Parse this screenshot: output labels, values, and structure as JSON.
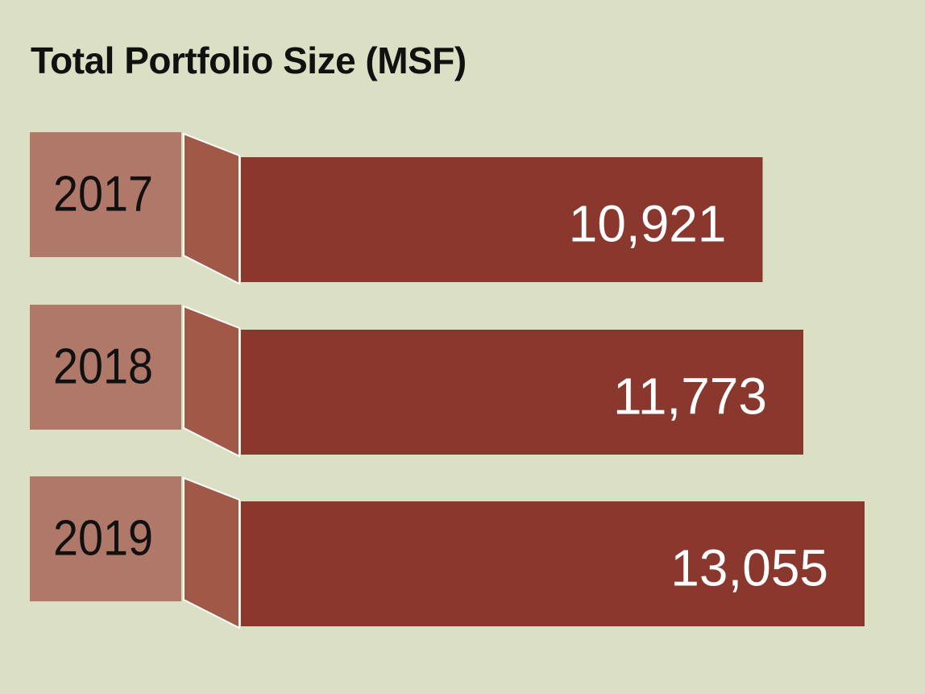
{
  "chart_data": {
    "type": "bar",
    "orientation": "horizontal",
    "title": "Total Portfolio Size (MSF)",
    "categories": [
      "2017",
      "2018",
      "2019"
    ],
    "values": [
      10921,
      11773,
      13055
    ],
    "value_labels": [
      "10,921",
      "11,773",
      "13,055"
    ],
    "xlabel": "",
    "ylabel": "",
    "grid": false,
    "legend": "none"
  },
  "colors": {
    "background": "#dbdfc3",
    "label_box": "#b07868",
    "connector": "#a05847",
    "bar": "#8a372d",
    "value_text": "#ffffff",
    "category_text": "#111111",
    "title_text": "#111111"
  }
}
